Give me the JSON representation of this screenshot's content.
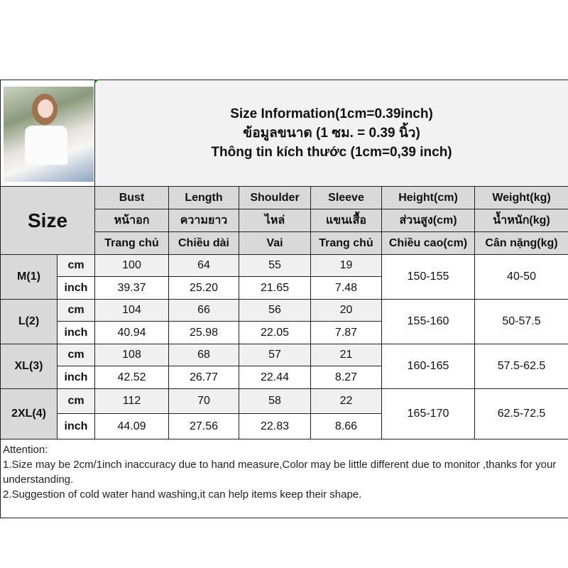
{
  "title": {
    "line1": "Size Information(1cm=0.39inch)",
    "line2": "ข้อมูลขนาด (1 ซม. = 0.39 นิ้ว)",
    "line3": "Thông tin kích thước (1cm=0,39 inch)"
  },
  "size_label": "Size",
  "columns": [
    {
      "en": "Bust",
      "th": "หน้าอก",
      "vi": "Trang chủ"
    },
    {
      "en": "Length",
      "th": "ความยาว",
      "vi": "Chiều dài"
    },
    {
      "en": "Shoulder",
      "th": "ไหล่",
      "vi": "Vai"
    },
    {
      "en": "Sleeve",
      "th": "แขนเสื้อ",
      "vi": "Trang chủ"
    },
    {
      "en": "Height(cm)",
      "th": "ส่วนสูง(cm)",
      "vi": "Chiều cao(cm)"
    },
    {
      "en": "Weight(kg)",
      "th": "น้ำหนัก(kg)",
      "vi": "Cân nặng(kg)"
    }
  ],
  "units": {
    "cm": "cm",
    "inch": "inch"
  },
  "sizes": [
    {
      "name": "M(1)",
      "cm": [
        "100",
        "64",
        "55",
        "19"
      ],
      "inch": [
        "39.37",
        "25.20",
        "21.65",
        "7.48"
      ],
      "height": "150-155",
      "weight": "40-50"
    },
    {
      "name": "L(2)",
      "cm": [
        "104",
        "66",
        "56",
        "20"
      ],
      "inch": [
        "40.94",
        "25.98",
        "22.05",
        "7.87"
      ],
      "height": "155-160",
      "weight": "50-57.5"
    },
    {
      "name": "XL(3)",
      "cm": [
        "108",
        "68",
        "57",
        "21"
      ],
      "inch": [
        "42.52",
        "26.77",
        "22.44",
        "8.27"
      ],
      "height": "160-165",
      "weight": "57.5-62.5"
    },
    {
      "name": "2XL(4)",
      "cm": [
        "112",
        "70",
        "58",
        "22"
      ],
      "inch": [
        "44.09",
        "27.56",
        "22.83",
        "8.66"
      ],
      "height": "165-170",
      "weight": "62.5-72.5"
    }
  ],
  "attention": {
    "heading": "Attention:",
    "line1": "1.Size may be 2cm/1inch inaccuracy due to hand measure,Color may be little different due to monitor ,thanks for your understanding.",
    "line2": "2.Suggestion of cold water hand washing,it can help items keep their shape."
  }
}
